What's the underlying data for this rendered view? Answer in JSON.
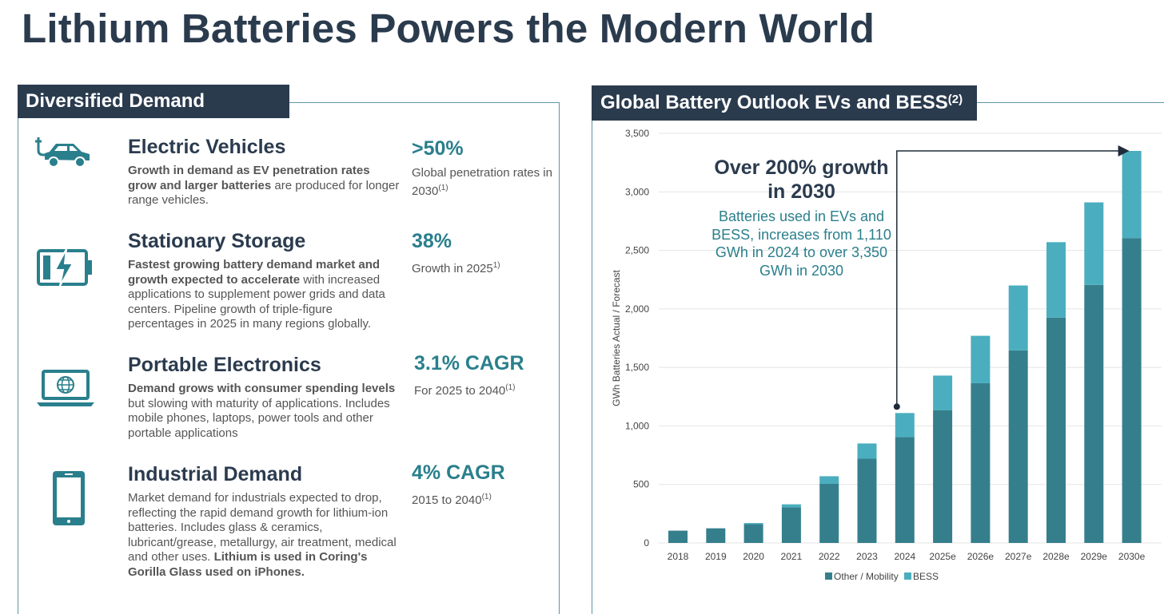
{
  "page_title": "Lithium Batteries Powers the Modern World",
  "left_panel": {
    "header": "Diversified Demand",
    "categories": [
      {
        "title": "Electric Vehicles",
        "icon": "ev-plug-car-icon",
        "desc_bold": "Growth in demand as EV penetration rates grow and larger batteries",
        "desc_rest": " are produced for longer range vehicles.",
        "stat_value": ">50%",
        "stat_label": "Global penetration rates in 2030",
        "stat_ref": "(1)"
      },
      {
        "title": "Stationary Storage",
        "icon": "battery-bolt-icon",
        "desc_bold": "Fastest growing battery demand market and growth expected to accelerate",
        "desc_rest": " with increased applications to supplement power grids and data centers. Pipeline growth of triple-figure percentages in 2025 in many regions globally.",
        "stat_value": "38%",
        "stat_label": "Growth in 2025",
        "stat_ref": "1)"
      },
      {
        "title": "Portable Electronics",
        "icon": "laptop-globe-icon",
        "desc_bold": "Demand grows with consumer spending levels",
        "desc_rest": " but slowing with maturity of applications. Includes mobile phones, laptops, power tools and other portable applications",
        "stat_value": "3.1% CAGR",
        "stat_label": "For 2025 to 2040",
        "stat_ref": "(1)"
      },
      {
        "title": "Industrial Demand",
        "icon": "smartphone-icon",
        "desc_plain": "Market demand for industrials expected to drop, reflecting the rapid demand growth for lithium-ion batteries. Includes glass & ceramics, lubricant/grease, metallurgy, air treatment, medical and other uses. ",
        "desc_bold_end": "Lithium is used in Coring's Gorilla Glass used on iPhones.",
        "stat_value": "4% CAGR",
        "stat_label": "2015 to 2040",
        "stat_ref": "(1)"
      }
    ]
  },
  "right_panel": {
    "header": "Global Battery Outlook EVs and BESS",
    "header_ref": "(2)",
    "callout_title": "Over 200% growth in 2030",
    "callout_text": "Batteries used in EVs and BESS, increases from 1,110 GWh in 2024 to over 3,350 GWh in 2030"
  },
  "colors": {
    "navy": "#2b3b4e",
    "teal": "#2a7f8c",
    "series_other": "#357f8d",
    "series_bess": "#4aaebf",
    "frame": "#5f95a6"
  },
  "chart_data": {
    "type": "bar",
    "stacked": true,
    "categories": [
      "2018",
      "2019",
      "2020",
      "2021",
      "2022",
      "2023",
      "2024",
      "2025e",
      "2026e",
      "2027e",
      "2028e",
      "2029e",
      "2030e"
    ],
    "series": [
      {
        "name": "Other / Mobility",
        "values": [
          105,
          125,
          160,
          305,
          505,
          720,
          905,
          1135,
          1365,
          1645,
          1925,
          2205,
          2605
        ]
      },
      {
        "name": "BESS",
        "values": [
          0,
          0,
          10,
          25,
          65,
          130,
          205,
          295,
          405,
          555,
          645,
          705,
          745
        ]
      }
    ],
    "ylabel": "GWh Batteries Actual / Forecast",
    "xlabel": "",
    "ylim": [
      0,
      3500
    ],
    "yticks": [
      0,
      500,
      1000,
      1500,
      2000,
      2500,
      3000,
      3500
    ],
    "ytick_labels": [
      "0",
      "500",
      "1,000",
      "1,500",
      "2,000",
      "2,500",
      "3,000",
      "3,500"
    ],
    "grid": true,
    "legend": "bottom",
    "arrow_annotation": {
      "from": "2024",
      "to": "2030e"
    }
  }
}
